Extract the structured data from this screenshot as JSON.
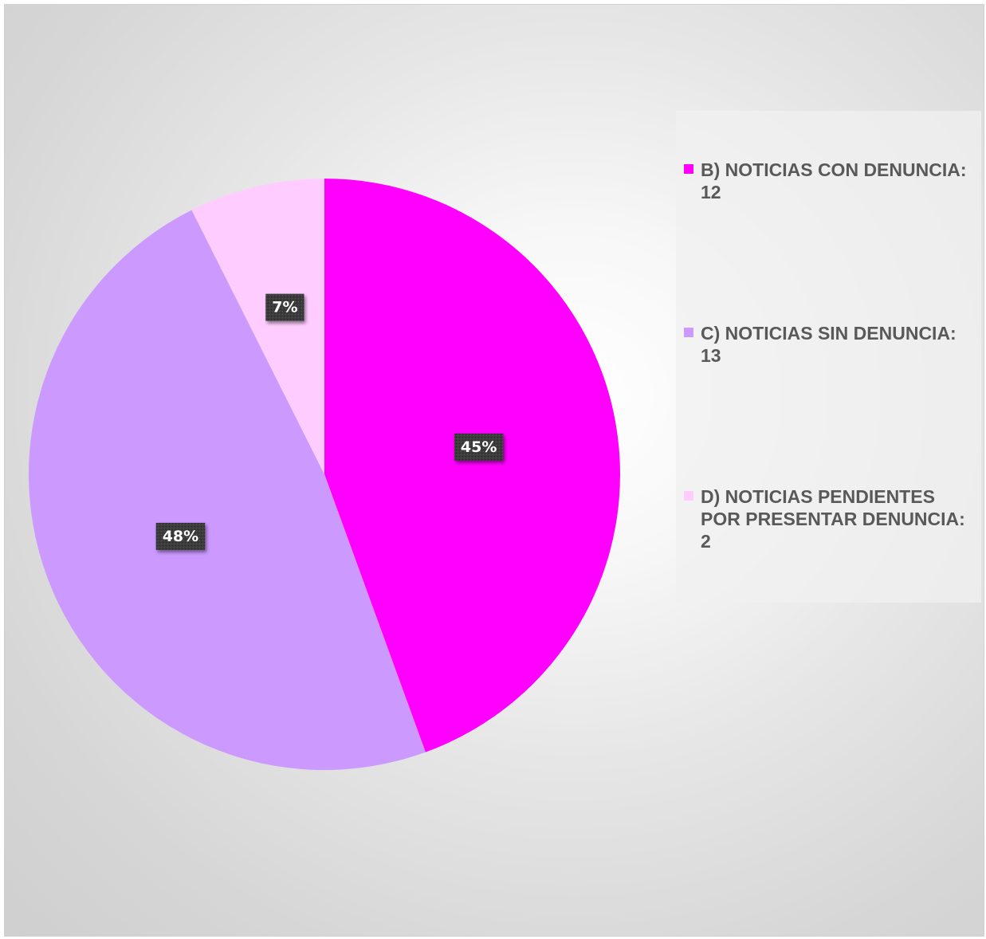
{
  "chart_data": {
    "type": "pie",
    "title": "",
    "legend_position": "right",
    "slices": [
      {
        "label": "B) NOTICIAS CON DENUNCIA: 12",
        "value": 12,
        "percent_label": "45%",
        "color": "#FF00FF"
      },
      {
        "label": "C) NOTICIAS SIN DENUNCIA: 13",
        "value": 13,
        "percent_label": "48%",
        "color": "#CC99FF"
      },
      {
        "label": "D) NOTICIAS PENDIENTES POR PRESENTAR DENUNCIA: 2",
        "value": 2,
        "percent_label": "7%",
        "color": "#FFCCFF"
      }
    ]
  }
}
